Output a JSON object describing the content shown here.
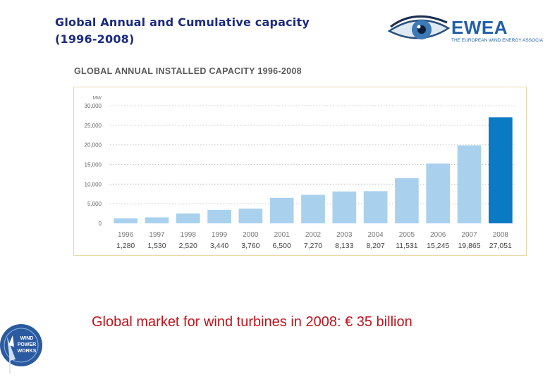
{
  "slide": {
    "title_line1": "Global Annual and Cumulative capacity",
    "title_line2": "(1996-2008)",
    "caption": "Global market for wind turbines in 2008: € 35 billion"
  },
  "logo": {
    "name": "EWEA",
    "subtitle": "THE EUROPEAN WIND ENERGY ASSOCIATION",
    "icon": "eye-icon"
  },
  "badge": {
    "line1": "WIND",
    "line2": "POWER",
    "line3": "WORKS",
    "icon": "wind-turbine-icon"
  },
  "colors": {
    "title": "#1b2a80",
    "caption": "#c0131b",
    "bar_light": "#a9d1ee",
    "bar_highlight": "#0a7ac4",
    "logo_blue": "#2160a8"
  },
  "chart_data": {
    "type": "bar",
    "title": "GLOBAL ANNUAL INSTALLED CAPACITY 1996-2008",
    "ylabel": "MW",
    "xlabel": "",
    "ylim": [
      0,
      30000
    ],
    "yticks": [
      0,
      5000,
      10000,
      15000,
      20000,
      25000,
      30000
    ],
    "ytick_labels": [
      "0",
      "5,000",
      "10,000",
      "15,000",
      "20,000",
      "25,000",
      "30,000"
    ],
    "grid": true,
    "categories": [
      "1996",
      "1997",
      "1998",
      "1999",
      "2000",
      "2001",
      "2002",
      "2003",
      "2004",
      "2005",
      "2006",
      "2007",
      "2008"
    ],
    "values": [
      1280,
      1530,
      2520,
      3440,
      3760,
      6500,
      7270,
      8133,
      8207,
      11531,
      15245,
      19865,
      27051
    ],
    "value_labels": [
      "1,280",
      "1,530",
      "2,520",
      "3,440",
      "3,760",
      "6,500",
      "7,270",
      "8,133",
      "8,207",
      "11,531",
      "15,245",
      "19,865",
      "27,051"
    ],
    "highlight_category": "2008"
  }
}
